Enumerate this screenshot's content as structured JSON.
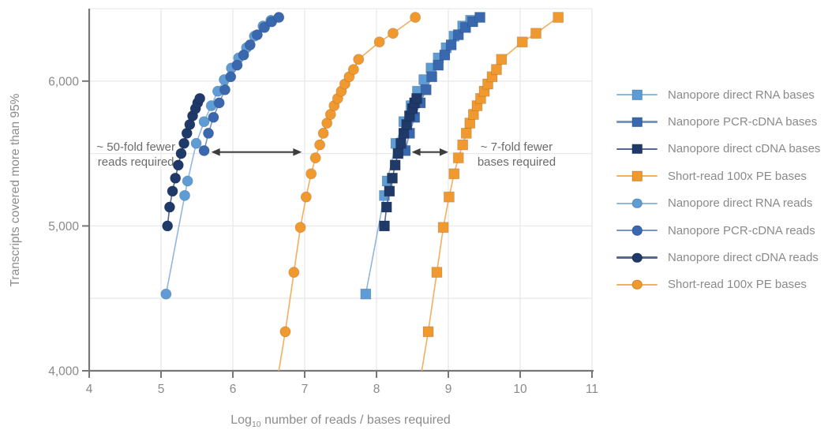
{
  "figure": {
    "y_axis_label": "Transcripts covered more than 95%",
    "x_label_log": "Log",
    "x_label_sub": "10",
    "x_label_rest": " number of reads / bases required"
  },
  "colors": {
    "axis": "#777777",
    "grid": "#e9e9e9",
    "tick_text": "#8a8a8a",
    "annotation_text": "#6b6b6b",
    "arrow": "#3d3d3d",
    "legend_text": "#8a8a8a"
  },
  "chart_data": {
    "type": "scatter",
    "title": "",
    "xlabel": "Log10 number of reads / bases required",
    "ylabel": "Transcripts covered more than 95%",
    "xlim": [
      4,
      11
    ],
    "ylim": [
      4000,
      6500
    ],
    "grid": true,
    "legend_position": "right",
    "x_ticks": [
      {
        "value": 4,
        "label": "4"
      },
      {
        "value": 5,
        "label": "5"
      },
      {
        "value": 6,
        "label": "6"
      },
      {
        "value": 7,
        "label": "7"
      },
      {
        "value": 8,
        "label": "8"
      },
      {
        "value": 9,
        "label": "9"
      },
      {
        "value": 10,
        "label": "10"
      },
      {
        "value": 11,
        "label": "11"
      }
    ],
    "y_ticks": [
      {
        "value": 4000,
        "label": "4,000"
      },
      {
        "value": 5000,
        "label": "5,000"
      },
      {
        "value": 6000,
        "label": "6,000"
      }
    ],
    "grid_x": [
      5,
      6,
      7,
      8,
      9,
      10,
      11
    ],
    "grid_y": [
      4500,
      5000,
      5500,
      6000,
      6500
    ],
    "series": [
      {
        "name": "Nanopore direct RNA bases",
        "marker": "square",
        "color": "#5e9cd3",
        "line_color": "#8fb8e0",
        "x": [
          7.85,
          8.11,
          8.15,
          8.27,
          8.38,
          8.48,
          8.57,
          8.66,
          8.76,
          8.86,
          8.97,
          9.08,
          9.2,
          9.31
        ],
        "y": [
          4530,
          5210,
          5310,
          5570,
          5720,
          5830,
          5930,
          6010,
          6090,
          6160,
          6230,
          6310,
          6380,
          6420
        ]
      },
      {
        "name": "Nanopore PCR-cDNA bases",
        "marker": "square",
        "color": "#3a68ae",
        "line_color": "#7a94c8",
        "x": [
          8.4,
          8.46,
          8.53,
          8.61,
          8.69,
          8.77,
          8.86,
          8.95,
          9.04,
          9.14,
          9.24,
          9.34,
          9.44
        ],
        "y": [
          5520,
          5640,
          5750,
          5850,
          5940,
          6030,
          6110,
          6180,
          6250,
          6320,
          6370,
          6410,
          6440
        ]
      },
      {
        "name": "Nanopore direct cDNA bases",
        "marker": "square",
        "color": "#1f3968",
        "line_color": "#54678c",
        "x": [
          8.11,
          8.14,
          8.18,
          8.22,
          8.26,
          8.3,
          8.34,
          8.38,
          8.42,
          8.46,
          8.5,
          8.53,
          8.56
        ],
        "y": [
          5000,
          5130,
          5240,
          5330,
          5420,
          5500,
          5570,
          5640,
          5700,
          5760,
          5810,
          5850,
          5880
        ]
      },
      {
        "name": "Short-read 100x PE bases",
        "marker": "square",
        "color": "#f0992f",
        "line_color": "#f4ae5f",
        "tail": {
          "x": 8.63,
          "y": 4000
        },
        "x": [
          8.72,
          8.84,
          8.93,
          9.01,
          9.08,
          9.14,
          9.2,
          9.25,
          9.3,
          9.35,
          9.4,
          9.45,
          9.5,
          9.55,
          9.61,
          9.67,
          9.74,
          10.03,
          10.22,
          10.53
        ],
        "y": [
          4270,
          4680,
          4990,
          5200,
          5360,
          5470,
          5560,
          5640,
          5710,
          5770,
          5830,
          5880,
          5930,
          5980,
          6030,
          6080,
          6150,
          6270,
          6330,
          6440
        ]
      },
      {
        "name": "Nanopore direct RNA reads",
        "marker": "circle",
        "color": "#5e9cd3",
        "line_color": "#8fb8e0",
        "x": [
          5.07,
          5.33,
          5.37,
          5.49,
          5.6,
          5.7,
          5.79,
          5.88,
          5.98,
          6.08,
          6.19,
          6.3,
          6.42,
          6.53
        ],
        "y": [
          4530,
          5210,
          5310,
          5570,
          5720,
          5830,
          5930,
          6010,
          6090,
          6160,
          6230,
          6310,
          6380,
          6420
        ]
      },
      {
        "name": "Nanopore PCR-cDNA reads",
        "marker": "circle",
        "color": "#3a68ae",
        "line_color": "#7a94c8",
        "x": [
          5.6,
          5.66,
          5.73,
          5.81,
          5.89,
          5.97,
          6.06,
          6.15,
          6.24,
          6.34,
          6.44,
          6.54,
          6.64
        ],
        "y": [
          5520,
          5640,
          5750,
          5850,
          5940,
          6030,
          6110,
          6180,
          6250,
          6320,
          6370,
          6410,
          6440
        ]
      },
      {
        "name": "Nanopore direct cDNA reads",
        "marker": "circle",
        "color": "#1f3968",
        "line_color": "#54678c",
        "x": [
          5.09,
          5.12,
          5.16,
          5.2,
          5.24,
          5.28,
          5.32,
          5.36,
          5.4,
          5.44,
          5.48,
          5.51,
          5.54
        ],
        "y": [
          5000,
          5130,
          5240,
          5330,
          5420,
          5500,
          5570,
          5640,
          5700,
          5760,
          5810,
          5850,
          5880
        ]
      },
      {
        "name": "Short-read 100x PE bases",
        "marker": "circle",
        "color": "#f0992f",
        "line_color": "#f4ae5f",
        "tail": {
          "x": 6.64,
          "y": 4000
        },
        "x": [
          6.73,
          6.85,
          6.94,
          7.02,
          7.09,
          7.15,
          7.21,
          7.26,
          7.31,
          7.36,
          7.41,
          7.46,
          7.51,
          7.56,
          7.62,
          7.68,
          7.75,
          8.04,
          8.23,
          8.54
        ],
        "y": [
          4270,
          4680,
          4990,
          5200,
          5360,
          5470,
          5560,
          5640,
          5710,
          5770,
          5830,
          5880,
          5930,
          5980,
          6030,
          6080,
          6150,
          6270,
          6330,
          6440
        ]
      }
    ],
    "annotations": [
      {
        "lines": [
          "~ 50-fold fewer",
          "reads required"
        ],
        "x": 4.65,
        "y": 5490,
        "arrow": {
          "x1": 5.7,
          "x2": 6.96,
          "y": 5510
        }
      },
      {
        "lines": [
          "~ 7-fold fewer",
          "bases required"
        ],
        "x": 9.95,
        "y": 5490,
        "arrow": {
          "x1": 8.49,
          "x2": 9.0,
          "y": 5510
        }
      }
    ]
  }
}
